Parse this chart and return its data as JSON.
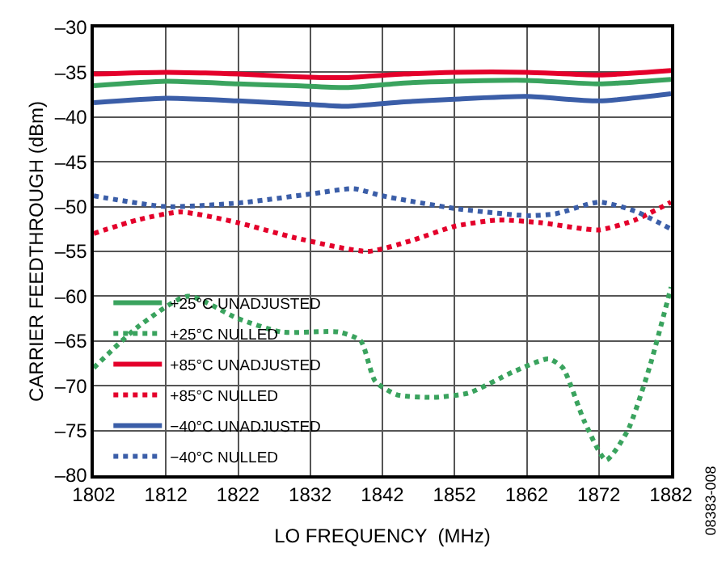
{
  "chart_data": {
    "type": "line",
    "xlabel": "LO FREQUENCY  (MHz)",
    "ylabel": "CARRIER FEEDTHROUGH (dBm)",
    "xlim": [
      1802,
      1882
    ],
    "xticks": [
      1802,
      1812,
      1822,
      1832,
      1842,
      1852,
      1862,
      1872,
      1882
    ],
    "ylim": [
      -80,
      -30
    ],
    "yticks": [
      {
        "value": -80,
        "label": "–80"
      },
      {
        "value": -75,
        "label": "–75"
      },
      {
        "value": -70,
        "label": "–70"
      },
      {
        "value": -65,
        "label": "–65"
      },
      {
        "value": -60,
        "label": "–60"
      },
      {
        "value": -55,
        "label": "–55"
      },
      {
        "value": -50,
        "label": "–50"
      },
      {
        "value": -45,
        "label": "–45"
      },
      {
        "value": -40,
        "label": "–40"
      },
      {
        "value": -35,
        "label": "–35"
      },
      {
        "value": -30,
        "label": "–30"
      }
    ],
    "grid": true,
    "legend": "bottom left",
    "marker": "none",
    "annotations": [
      "08383-008"
    ],
    "series": [
      {
        "name": "+25°C UNADJUSTED",
        "color": "#3aa35e",
        "line_style": "solid",
        "x": [
          1802,
          1812,
          1822,
          1830,
          1837,
          1845,
          1852,
          1862,
          1872,
          1882
        ],
        "values": [
          -36.5,
          -36.0,
          -36.3,
          -36.5,
          -36.7,
          -36.2,
          -36.0,
          -35.9,
          -36.3,
          -35.8
        ]
      },
      {
        "name": "+25°C NULLED",
        "color": "#3aa35e",
        "line_style": "dotted",
        "x": [
          1802,
          1808,
          1815,
          1822,
          1828,
          1836,
          1839,
          1841,
          1844,
          1849,
          1854,
          1860,
          1865,
          1867,
          1870,
          1873,
          1876,
          1879,
          1882
        ],
        "values": [
          -68,
          -63.5,
          -60,
          -62.5,
          -64,
          -64,
          -65,
          -69.5,
          -71,
          -71.3,
          -70.8,
          -68.5,
          -67,
          -68,
          -74,
          -78.3,
          -75,
          -68,
          -59
        ]
      },
      {
        "name": "+85°C UNADJUSTED",
        "color": "#e4002b",
        "line_style": "solid",
        "x": [
          1802,
          1812,
          1822,
          1830,
          1837,
          1845,
          1852,
          1862,
          1872,
          1882
        ],
        "values": [
          -35.2,
          -35.0,
          -35.2,
          -35.5,
          -35.6,
          -35.2,
          -35.0,
          -35.0,
          -35.3,
          -34.8
        ]
      },
      {
        "name": "+85°C NULLED",
        "color": "#e4002b",
        "line_style": "dotted",
        "x": [
          1802,
          1808,
          1814,
          1822,
          1830,
          1840,
          1846,
          1852,
          1858,
          1864,
          1872,
          1877,
          1882
        ],
        "values": [
          -53,
          -51.5,
          -50.6,
          -51.8,
          -53.5,
          -55,
          -53.8,
          -52.2,
          -51.5,
          -51.8,
          -52.6,
          -51.5,
          -49.5
        ]
      },
      {
        "name": "−40°C UNADJUSTED",
        "color": "#3b5ea8",
        "line_style": "solid",
        "x": [
          1802,
          1812,
          1822,
          1832,
          1837,
          1845,
          1852,
          1862,
          1872,
          1882
        ],
        "values": [
          -38.4,
          -37.9,
          -38.2,
          -38.6,
          -38.8,
          -38.3,
          -38.0,
          -37.7,
          -38.2,
          -37.4
        ]
      },
      {
        "name": "−40°C NULLED",
        "color": "#3b5ea8",
        "line_style": "dotted",
        "x": [
          1802,
          1812,
          1822,
          1832,
          1838,
          1842,
          1852,
          1862,
          1866,
          1872,
          1877,
          1882
        ],
        "values": [
          -48.8,
          -50.0,
          -49.6,
          -48.6,
          -48.0,
          -48.8,
          -50.2,
          -51.0,
          -50.8,
          -49.5,
          -50.5,
          -52.5
        ]
      }
    ]
  }
}
